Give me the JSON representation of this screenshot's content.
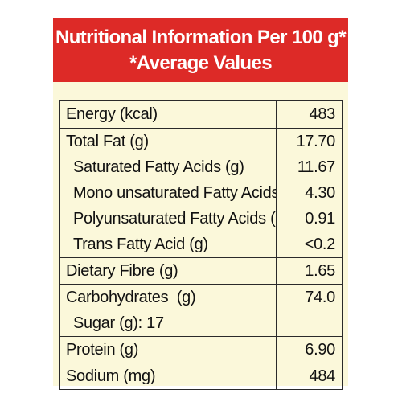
{
  "header": {
    "title": "Nutritional Information Per 100 g*",
    "subtitle": "*Average Values"
  },
  "rows": [
    {
      "lines": [
        {
          "label": "Energy (kcal)",
          "value": "483"
        }
      ]
    },
    {
      "lines": [
        {
          "label": "Total Fat (g)",
          "value": "17.70"
        },
        {
          "label": "Saturated Fatty Acids (g)",
          "value": "11.67"
        },
        {
          "label": "Mono unsaturated Fatty Acids (g)",
          "value": "4.30"
        },
        {
          "label": "Polyunsaturated Fatty Acids (g)",
          "value": "0.91"
        },
        {
          "label": "Trans Fatty Acid (g)",
          "value": "<0.2"
        }
      ]
    },
    {
      "lines": [
        {
          "label": "Dietary Fibre (g)",
          "value": "1.65"
        }
      ]
    },
    {
      "lines": [
        {
          "label": "Carbohydrates  (g)",
          "value": "74.0"
        },
        {
          "label": "Sugar (g): 17",
          "value": ""
        }
      ]
    },
    {
      "lines": [
        {
          "label": "Protein (g)",
          "value": "6.90"
        }
      ]
    },
    {
      "lines": [
        {
          "label": "Sodium (mg)",
          "value": "484"
        }
      ]
    }
  ],
  "colors": {
    "header_bg": "#dd2a27",
    "panel_bg": "#fbf8da",
    "border": "#2a2a2a"
  }
}
